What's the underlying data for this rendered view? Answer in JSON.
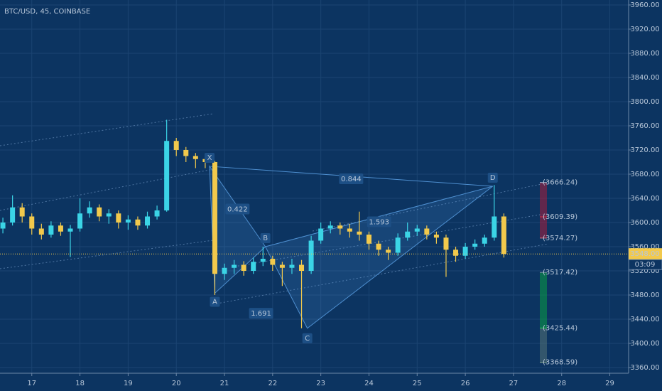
{
  "chart_data": {
    "type": "candlestick",
    "title": "BTC/USD, 45, COINBASE",
    "x": [
      16.4,
      16.6,
      16.8,
      17.0,
      17.2,
      17.4,
      17.6,
      17.8,
      18.0,
      18.2,
      18.4,
      18.6,
      18.8,
      19.0,
      19.2,
      19.4,
      19.6,
      19.8,
      20.0,
      20.2,
      20.4,
      20.6,
      20.8,
      21.0,
      21.2,
      21.4,
      21.6,
      21.8,
      22.0,
      22.2,
      22.4,
      22.6,
      22.8,
      23.0,
      23.2,
      23.4,
      23.6,
      23.8,
      24.0,
      24.2,
      24.4,
      24.6,
      24.8,
      25.0,
      25.2,
      25.4,
      25.6,
      25.8,
      26.0,
      26.2,
      26.4,
      26.6,
      26.8
    ],
    "open": [
      3590,
      3600,
      3625,
      3610,
      3590,
      3580,
      3595,
      3585,
      3590,
      3615,
      3625,
      3610,
      3615,
      3600,
      3605,
      3595,
      3610,
      3620,
      3735,
      3720,
      3710,
      3705,
      3700,
      3515,
      3525,
      3530,
      3520,
      3535,
      3540,
      3530,
      3525,
      3530,
      3520,
      3570,
      3590,
      3595,
      3590,
      3585,
      3580,
      3565,
      3555,
      3550,
      3575,
      3585,
      3590,
      3580,
      3575,
      3555,
      3545,
      3560,
      3565,
      3575,
      3610
    ],
    "high": [
      3608,
      3645,
      3632,
      3615,
      3598,
      3602,
      3600,
      3596,
      3640,
      3635,
      3630,
      3622,
      3620,
      3612,
      3610,
      3618,
      3628,
      3770,
      3740,
      3725,
      3715,
      3710,
      3702,
      3532,
      3538,
      3536,
      3542,
      3560,
      3545,
      3535,
      3540,
      3538,
      3578,
      3600,
      3602,
      3600,
      3598,
      3618,
      3585,
      3570,
      3560,
      3582,
      3600,
      3596,
      3595,
      3585,
      3580,
      3560,
      3566,
      3572,
      3580,
      3662,
      3615
    ],
    "low": [
      3582,
      3595,
      3600,
      3580,
      3572,
      3575,
      3578,
      3543,
      3585,
      3608,
      3602,
      3598,
      3590,
      3588,
      3588,
      3590,
      3605,
      3618,
      3710,
      3700,
      3690,
      3690,
      3480,
      3505,
      3515,
      3512,
      3515,
      3528,
      3520,
      3495,
      3515,
      3425,
      3515,
      3565,
      3582,
      3580,
      3575,
      3570,
      3555,
      3545,
      3538,
      3545,
      3570,
      3578,
      3572,
      3565,
      3510,
      3535,
      3540,
      3555,
      3560,
      3570,
      3542
    ],
    "close": [
      3600,
      3625,
      3610,
      3590,
      3580,
      3595,
      3585,
      3590,
      3615,
      3625,
      3610,
      3615,
      3600,
      3605,
      3595,
      3610,
      3620,
      3735,
      3720,
      3710,
      3705,
      3700,
      3515,
      3525,
      3530,
      3520,
      3535,
      3540,
      3530,
      3525,
      3530,
      3520,
      3570,
      3590,
      3595,
      3590,
      3585,
      3580,
      3565,
      3555,
      3550,
      3575,
      3585,
      3590,
      3580,
      3575,
      3555,
      3545,
      3560,
      3565,
      3575,
      3610,
      3548
    ],
    "up_color": "#3bd4e6",
    "down_color": "#f2c94c",
    "xlim": [
      16.34,
      29.39
    ],
    "xticks": [
      17,
      18,
      19,
      20,
      21,
      22,
      23,
      24,
      25,
      26,
      27,
      28,
      29
    ],
    "ylim": [
      3350.6,
      3968.2
    ],
    "yticks": [
      {
        "value": 3360,
        "label": "3360.00"
      },
      {
        "value": 3400,
        "label": "3400.00"
      },
      {
        "value": 3440,
        "label": "3440.00"
      },
      {
        "value": 3480,
        "label": "3480.00"
      },
      {
        "value": 3520,
        "label": "3520.00"
      },
      {
        "value": 3560,
        "label": "3560.00"
      },
      {
        "value": 3600,
        "label": "3600.00"
      },
      {
        "value": 3640,
        "label": "3640.00"
      },
      {
        "value": 3680,
        "label": "3680.00"
      },
      {
        "value": 3720,
        "label": "3720.00"
      },
      {
        "value": 3760,
        "label": "3760.00"
      },
      {
        "value": 3800,
        "label": "3800.00"
      },
      {
        "value": 3840,
        "label": "3840.00"
      },
      {
        "value": 3880,
        "label": "3880.00"
      },
      {
        "value": 3920,
        "label": "3920.00"
      },
      {
        "value": 3960,
        "label": "3960.00"
      }
    ],
    "grid": true,
    "last_price": {
      "value": 3548,
      "label": "3548.00"
    },
    "countdown": "03:09",
    "pattern": {
      "points": [
        {
          "name": "X",
          "x": 20.69,
          "price": 3693
        },
        {
          "name": "A",
          "x": 20.8,
          "price": 3483
        },
        {
          "name": "B",
          "x": 21.85,
          "price": 3560
        },
        {
          "name": "C",
          "x": 22.72,
          "price": 3425
        },
        {
          "name": "D",
          "x": 26.57,
          "price": 3660
        }
      ],
      "ratios": [
        "0.422",
        "0.844",
        "1.593",
        "1.691"
      ]
    },
    "levels": [
      {
        "value": 3666.24,
        "label": "(3666.24)",
        "color": "#a9bfd6"
      },
      {
        "value": 3609.39,
        "label": "(3609.39)",
        "color": "#d9304a"
      },
      {
        "value": 3574.27,
        "label": "(3574.27)",
        "color": "#e27a86"
      },
      {
        "value": 3517.42,
        "label": "(3517.42)",
        "color": "#7f93a8"
      },
      {
        "value": 3425.44,
        "label": "(3425.44)",
        "color": "#2bd45a"
      },
      {
        "value": 3368.59,
        "label": "(3368.59)",
        "color": "#86a892"
      }
    ]
  }
}
